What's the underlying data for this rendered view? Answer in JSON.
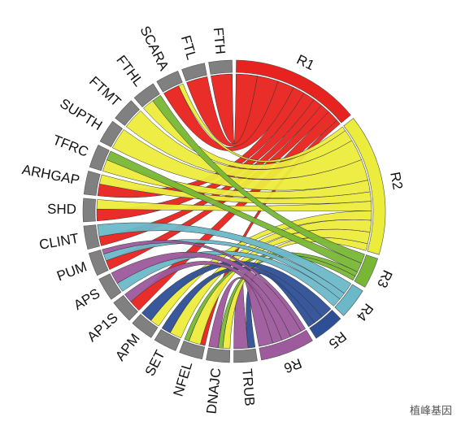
{
  "chart_data": {
    "type": "chord",
    "categories": [
      "TRUB",
      "DNAJC",
      "NFEL",
      "SET",
      "APM",
      "AP1S",
      "APS",
      "PUM",
      "CLINT",
      "SHD",
      "ARHGAP",
      "TFRC",
      "SUPTH",
      "FTMT",
      "FTHL",
      "SCARA",
      "FTL",
      "FTH"
    ],
    "category_color": "#808080",
    "series": [
      {
        "name": "R1",
        "color": "#e8231f",
        "values": [
          0,
          0,
          2,
          0,
          0,
          5,
          0,
          4,
          4,
          5,
          5,
          0,
          0,
          0,
          0,
          7,
          9,
          9
        ]
      },
      {
        "name": "R2",
        "color": "#ecec3c",
        "values": [
          0,
          3,
          5,
          5,
          4,
          0,
          0,
          0,
          0,
          4,
          4,
          5,
          9,
          9,
          5,
          2,
          0,
          0
        ]
      },
      {
        "name": "R3",
        "color": "#77b735",
        "values": [
          0,
          2,
          2,
          0,
          0,
          0,
          0,
          0,
          0,
          0,
          0,
          4,
          0,
          0,
          4,
          0,
          0,
          0
        ]
      },
      {
        "name": "R4",
        "color": "#6bb8c8",
        "values": [
          0,
          0,
          0,
          0,
          0,
          0,
          4,
          3,
          5,
          0,
          0,
          0,
          0,
          0,
          0,
          0,
          0,
          0
        ]
      },
      {
        "name": "R5",
        "color": "#2e4f96",
        "values": [
          3,
          0,
          0,
          4,
          5,
          0,
          0,
          0,
          0,
          0,
          0,
          0,
          0,
          0,
          0,
          0,
          0,
          0
        ]
      },
      {
        "name": "R6",
        "color": "#9d5a9c",
        "values": [
          6,
          4,
          0,
          0,
          0,
          4,
          5,
          2,
          0,
          0,
          0,
          0,
          0,
          0,
          0,
          0,
          0,
          0
        ]
      }
    ]
  },
  "watermark": "植峰基因"
}
